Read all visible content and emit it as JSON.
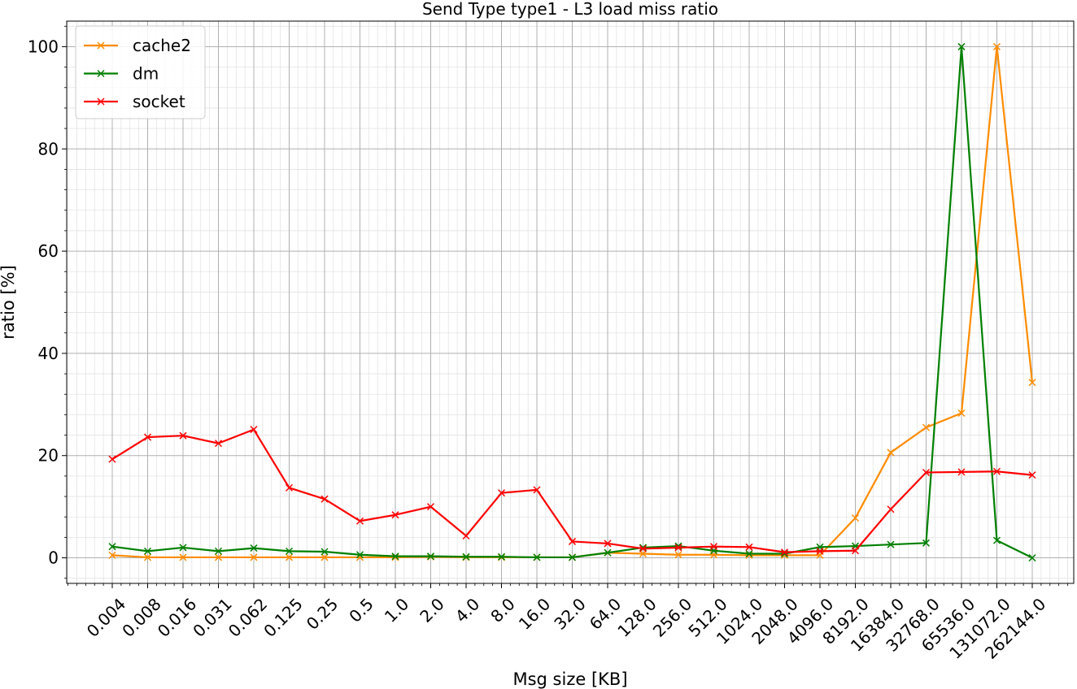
{
  "chart_data": {
    "type": "line",
    "title": "Send Type type1 - L3 load miss ratio",
    "xlabel": "Msg size [KB]",
    "ylabel": "ratio [%]",
    "categories": [
      "0.004",
      "0.008",
      "0.016",
      "0.031",
      "0.062",
      "0.125",
      "0.25",
      "0.5",
      "1.0",
      "2.0",
      "4.0",
      "8.0",
      "16.0",
      "32.0",
      "64.0",
      "128.0",
      "256.0",
      "512.0",
      "1024.0",
      "2048.0",
      "4096.0",
      "8192.0",
      "16384.0",
      "32768.0",
      "65536.0",
      "131072.0",
      "262144.0"
    ],
    "yticks": [
      0,
      20,
      40,
      60,
      80,
      100
    ],
    "ylim": [
      -5,
      105
    ],
    "grid": true,
    "legend_position": "top-left",
    "marker": "x",
    "series": [
      {
        "name": "cache2",
        "color": "#ff8c00",
        "values": [
          0.5,
          0.1,
          0.1,
          0.1,
          0.1,
          0.1,
          0.1,
          0.1,
          0.1,
          0.2,
          0.1,
          0.1,
          0.1,
          0.1,
          1.0,
          0.8,
          0.6,
          0.6,
          0.5,
          0.5,
          0.5,
          7.8,
          20.6,
          25.5,
          28.3,
          100.0,
          34.3
        ]
      },
      {
        "name": "dm",
        "color": "#008000",
        "values": [
          2.2,
          1.3,
          2.0,
          1.3,
          1.9,
          1.3,
          1.2,
          0.6,
          0.3,
          0.3,
          0.2,
          0.2,
          0.1,
          0.1,
          1.0,
          2.0,
          2.3,
          1.4,
          0.8,
          0.8,
          2.1,
          2.3,
          2.6,
          2.9,
          100.0,
          3.4,
          0.0
        ]
      },
      {
        "name": "socket",
        "color": "#ff0000",
        "values": [
          19.3,
          23.6,
          23.9,
          22.4,
          25.1,
          13.7,
          11.5,
          7.2,
          8.4,
          10.0,
          4.3,
          12.7,
          13.3,
          3.2,
          2.8,
          1.8,
          2.0,
          2.2,
          2.1,
          1.1,
          1.3,
          1.4,
          9.5,
          16.7,
          16.8,
          16.9,
          16.2
        ]
      }
    ]
  }
}
